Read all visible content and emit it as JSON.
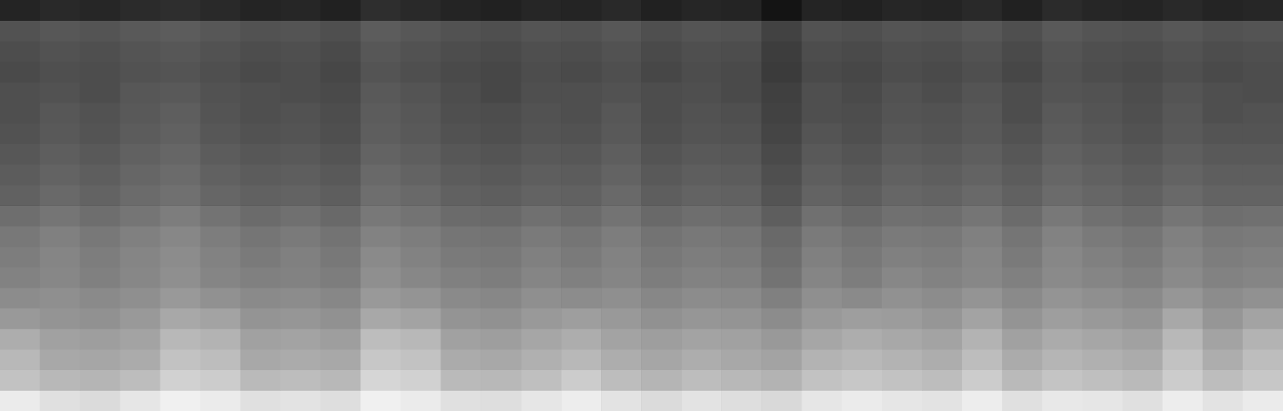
{
  "chart_data": {
    "type": "heatmap",
    "tick_labels": false,
    "color_range": [
      0,
      100
    ],
    "cells": [
      [
        14,
        16,
        15,
        17,
        18,
        16,
        14,
        15,
        13,
        18,
        16,
        14,
        13,
        15,
        14,
        16,
        13,
        15,
        14,
        8,
        14,
        13,
        15,
        14,
        16,
        13,
        17,
        15,
        14,
        16,
        14,
        15
      ],
      [
        32,
        34,
        33,
        35,
        36,
        34,
        32,
        33,
        31,
        36,
        34,
        32,
        31,
        33,
        32,
        34,
        31,
        33,
        32,
        26,
        32,
        31,
        33,
        32,
        34,
        31,
        35,
        33,
        32,
        34,
        32,
        33
      ],
      [
        30,
        32,
        31,
        33,
        34,
        32,
        30,
        31,
        29,
        34,
        32,
        30,
        29,
        31,
        30,
        32,
        29,
        31,
        30,
        24,
        30,
        29,
        31,
        30,
        32,
        29,
        33,
        31,
        30,
        32,
        30,
        31
      ],
      [
        29,
        31,
        30,
        32,
        33,
        31,
        29,
        30,
        28,
        33,
        31,
        29,
        28,
        30,
        29,
        31,
        28,
        30,
        29,
        23,
        29,
        28,
        30,
        29,
        31,
        28,
        32,
        30,
        29,
        31,
        29,
        30
      ],
      [
        31,
        32,
        30,
        34,
        35,
        32,
        31,
        30,
        29,
        35,
        33,
        30,
        28,
        31,
        31,
        32,
        30,
        31,
        29,
        25,
        31,
        29,
        32,
        30,
        33,
        30,
        33,
        32,
        30,
        33,
        31,
        30
      ],
      [
        31,
        34,
        32,
        35,
        37,
        33,
        31,
        32,
        30,
        36,
        34,
        31,
        30,
        32,
        31,
        34,
        30,
        32,
        31,
        26,
        31,
        30,
        33,
        32,
        34,
        30,
        35,
        33,
        31,
        34,
        31,
        32
      ],
      [
        32,
        35,
        33,
        36,
        38,
        34,
        32,
        33,
        31,
        37,
        35,
        32,
        31,
        33,
        32,
        35,
        31,
        33,
        32,
        27,
        33,
        31,
        34,
        33,
        35,
        32,
        36,
        34,
        32,
        35,
        33,
        33
      ],
      [
        34,
        37,
        35,
        38,
        40,
        36,
        34,
        35,
        33,
        39,
        37,
        34,
        33,
        35,
        34,
        37,
        33,
        35,
        34,
        29,
        35,
        33,
        36,
        35,
        37,
        34,
        38,
        36,
        34,
        37,
        35,
        35
      ],
      [
        36,
        39,
        37,
        40,
        42,
        38,
        36,
        37,
        35,
        41,
        39,
        36,
        35,
        37,
        36,
        39,
        35,
        37,
        36,
        31,
        37,
        35,
        38,
        37,
        39,
        36,
        40,
        38,
        36,
        39,
        37,
        37
      ],
      [
        38,
        41,
        39,
        42,
        44,
        40,
        38,
        39,
        37,
        43,
        41,
        38,
        37,
        39,
        38,
        41,
        37,
        39,
        38,
        33,
        39,
        37,
        40,
        39,
        41,
        38,
        42,
        40,
        38,
        41,
        39,
        39
      ],
      [
        43,
        46,
        43,
        46,
        49,
        45,
        42,
        44,
        41,
        47,
        45,
        42,
        41,
        44,
        42,
        45,
        41,
        43,
        42,
        37,
        44,
        41,
        44,
        43,
        46,
        42,
        47,
        44,
        42,
        46,
        43,
        44
      ],
      [
        47,
        50,
        47,
        50,
        53,
        49,
        46,
        48,
        45,
        51,
        49,
        46,
        45,
        48,
        46,
        49,
        45,
        47,
        46,
        41,
        48,
        45,
        48,
        47,
        50,
        46,
        51,
        48,
        46,
        50,
        47,
        48
      ],
      [
        49,
        52,
        49,
        52,
        55,
        51,
        48,
        50,
        47,
        54,
        51,
        48,
        47,
        50,
        48,
        51,
        47,
        49,
        48,
        43,
        50,
        47,
        50,
        49,
        52,
        48,
        53,
        50,
        48,
        52,
        49,
        50
      ],
      [
        51,
        53,
        50,
        53,
        56,
        52,
        50,
        51,
        49,
        56,
        53,
        50,
        49,
        52,
        50,
        52,
        49,
        51,
        50,
        45,
        52,
        49,
        53,
        51,
        53,
        50,
        54,
        52,
        50,
        54,
        51,
        52
      ],
      [
        55,
        56,
        54,
        56,
        60,
        57,
        54,
        55,
        53,
        60,
        58,
        54,
        53,
        56,
        55,
        56,
        53,
        55,
        54,
        50,
        56,
        54,
        57,
        55,
        58,
        54,
        58,
        56,
        54,
        59,
        55,
        57
      ],
      [
        60,
        58,
        57,
        60,
        66,
        64,
        58,
        59,
        57,
        66,
        64,
        58,
        57,
        60,
        62,
        60,
        57,
        59,
        58,
        55,
        60,
        62,
        61,
        59,
        64,
        58,
        62,
        60,
        58,
        66,
        59,
        64
      ],
      [
        68,
        63,
        62,
        64,
        72,
        70,
        63,
        64,
        62,
        74,
        72,
        63,
        62,
        65,
        68,
        64,
        62,
        64,
        63,
        60,
        65,
        68,
        66,
        64,
        70,
        63,
        67,
        65,
        63,
        72,
        64,
        70
      ],
      [
        72,
        66,
        65,
        67,
        76,
        74,
        66,
        67,
        66,
        78,
        76,
        67,
        66,
        69,
        72,
        68,
        65,
        68,
        66,
        64,
        70,
        72,
        70,
        68,
        74,
        67,
        71,
        69,
        67,
        76,
        68,
        74
      ],
      [
        76,
        72,
        71,
        74,
        82,
        80,
        73,
        74,
        72,
        84,
        82,
        73,
        72,
        75,
        80,
        74,
        71,
        74,
        72,
        70,
        76,
        78,
        76,
        74,
        80,
        73,
        77,
        75,
        73,
        80,
        74,
        78
      ],
      [
        92,
        88,
        86,
        90,
        94,
        92,
        88,
        89,
        87,
        94,
        92,
        88,
        87,
        90,
        93,
        89,
        86,
        89,
        87,
        85,
        90,
        92,
        90,
        89,
        93,
        88,
        91,
        90,
        88,
        93,
        89,
        92
      ]
    ]
  }
}
